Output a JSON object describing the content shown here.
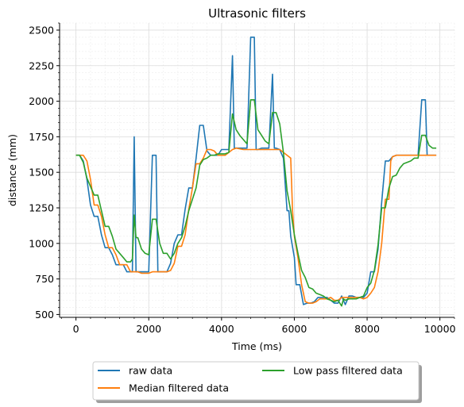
{
  "chart_data": {
    "type": "line",
    "title": "Ultrasonic filters",
    "xlabel": "Time (ms)",
    "ylabel": "distance (mm)",
    "xlim": [
      -450,
      10400
    ],
    "ylim": [
      480,
      2550
    ],
    "xticks": [
      0,
      2000,
      4000,
      6000,
      8000,
      10000
    ],
    "yticks": [
      500,
      750,
      1000,
      1250,
      1500,
      1750,
      2000,
      2250,
      2500
    ],
    "grid": true,
    "legend_position": "bottom-center",
    "series": [
      {
        "name": "raw data",
        "color": "#1f77b4",
        "points": [
          [
            0,
            1620
          ],
          [
            100,
            1620
          ],
          [
            200,
            1580
          ],
          [
            300,
            1450
          ],
          [
            400,
            1270
          ],
          [
            500,
            1190
          ],
          [
            600,
            1190
          ],
          [
            700,
            1060
          ],
          [
            800,
            970
          ],
          [
            900,
            970
          ],
          [
            1000,
            920
          ],
          [
            1100,
            850
          ],
          [
            1200,
            850
          ],
          [
            1300,
            850
          ],
          [
            1400,
            800
          ],
          [
            1500,
            800
          ],
          [
            1550,
            800
          ],
          [
            1600,
            1750
          ],
          [
            1650,
            800
          ],
          [
            1700,
            800
          ],
          [
            1800,
            800
          ],
          [
            1900,
            800
          ],
          [
            2000,
            800
          ],
          [
            2100,
            1620
          ],
          [
            2200,
            1620
          ],
          [
            2250,
            800
          ],
          [
            2300,
            800
          ],
          [
            2400,
            800
          ],
          [
            2500,
            800
          ],
          [
            2600,
            860
          ],
          [
            2700,
            1000
          ],
          [
            2800,
            1060
          ],
          [
            2900,
            1060
          ],
          [
            3000,
            1240
          ],
          [
            3100,
            1390
          ],
          [
            3200,
            1390
          ],
          [
            3300,
            1600
          ],
          [
            3400,
            1830
          ],
          [
            3500,
            1830
          ],
          [
            3600,
            1650
          ],
          [
            3700,
            1620
          ],
          [
            3800,
            1620
          ],
          [
            3900,
            1620
          ],
          [
            4000,
            1660
          ],
          [
            4100,
            1660
          ],
          [
            4200,
            1660
          ],
          [
            4300,
            2320
          ],
          [
            4350,
            1670
          ],
          [
            4400,
            1670
          ],
          [
            4500,
            1670
          ],
          [
            4600,
            1670
          ],
          [
            4700,
            1670
          ],
          [
            4800,
            2450
          ],
          [
            4900,
            2450
          ],
          [
            4950,
            1660
          ],
          [
            5000,
            1660
          ],
          [
            5100,
            1670
          ],
          [
            5200,
            1670
          ],
          [
            5300,
            1670
          ],
          [
            5400,
            2190
          ],
          [
            5450,
            1670
          ],
          [
            5500,
            1670
          ],
          [
            5600,
            1660
          ],
          [
            5700,
            1600
          ],
          [
            5800,
            1230
          ],
          [
            5850,
            1230
          ],
          [
            5900,
            1050
          ],
          [
            6000,
            900
          ],
          [
            6050,
            710
          ],
          [
            6150,
            710
          ],
          [
            6250,
            570
          ],
          [
            6350,
            580
          ],
          [
            6450,
            580
          ],
          [
            6550,
            590
          ],
          [
            6650,
            620
          ],
          [
            6800,
            620
          ],
          [
            6900,
            620
          ],
          [
            7000,
            600
          ],
          [
            7100,
            580
          ],
          [
            7200,
            580
          ],
          [
            7300,
            630
          ],
          [
            7400,
            570
          ],
          [
            7500,
            630
          ],
          [
            7600,
            630
          ],
          [
            7700,
            620
          ],
          [
            7800,
            620
          ],
          [
            7900,
            620
          ],
          [
            8000,
            650
          ],
          [
            8100,
            800
          ],
          [
            8200,
            800
          ],
          [
            8300,
            960
          ],
          [
            8400,
            1290
          ],
          [
            8500,
            1580
          ],
          [
            8600,
            1580
          ],
          [
            8700,
            1610
          ],
          [
            8800,
            1620
          ],
          [
            9000,
            1620
          ],
          [
            9200,
            1620
          ],
          [
            9400,
            1620
          ],
          [
            9500,
            2010
          ],
          [
            9600,
            2010
          ],
          [
            9650,
            1620
          ],
          [
            9700,
            1620
          ],
          [
            9800,
            1620
          ],
          [
            9900,
            1620
          ]
        ]
      },
      {
        "name": "Median filtered data",
        "color": "#ff7f0e",
        "points": [
          [
            0,
            1620
          ],
          [
            200,
            1620
          ],
          [
            300,
            1580
          ],
          [
            400,
            1450
          ],
          [
            500,
            1270
          ],
          [
            600,
            1270
          ],
          [
            700,
            1190
          ],
          [
            800,
            1060
          ],
          [
            900,
            970
          ],
          [
            1000,
            970
          ],
          [
            1100,
            920
          ],
          [
            1200,
            850
          ],
          [
            1300,
            850
          ],
          [
            1400,
            850
          ],
          [
            1500,
            800
          ],
          [
            1700,
            800
          ],
          [
            1800,
            790
          ],
          [
            2000,
            790
          ],
          [
            2100,
            800
          ],
          [
            2400,
            800
          ],
          [
            2500,
            800
          ],
          [
            2600,
            810
          ],
          [
            2700,
            860
          ],
          [
            2800,
            980
          ],
          [
            2900,
            980
          ],
          [
            3000,
            1060
          ],
          [
            3100,
            1240
          ],
          [
            3200,
            1390
          ],
          [
            3300,
            1560
          ],
          [
            3400,
            1560
          ],
          [
            3500,
            1600
          ],
          [
            3600,
            1660
          ],
          [
            3700,
            1660
          ],
          [
            3800,
            1650
          ],
          [
            3900,
            1620
          ],
          [
            4000,
            1620
          ],
          [
            4100,
            1620
          ],
          [
            4200,
            1640
          ],
          [
            4300,
            1660
          ],
          [
            4400,
            1670
          ],
          [
            4600,
            1660
          ],
          [
            4800,
            1660
          ],
          [
            5000,
            1660
          ],
          [
            5200,
            1660
          ],
          [
            5400,
            1660
          ],
          [
            5600,
            1660
          ],
          [
            5700,
            1640
          ],
          [
            5900,
            1600
          ],
          [
            5950,
            1230
          ],
          [
            6000,
            1050
          ],
          [
            6100,
            900
          ],
          [
            6200,
            710
          ],
          [
            6300,
            590
          ],
          [
            6400,
            580
          ],
          [
            6500,
            580
          ],
          [
            6600,
            590
          ],
          [
            6700,
            610
          ],
          [
            6900,
            610
          ],
          [
            7000,
            620
          ],
          [
            7100,
            600
          ],
          [
            7200,
            600
          ],
          [
            7300,
            620
          ],
          [
            7400,
            620
          ],
          [
            7500,
            620
          ],
          [
            7700,
            620
          ],
          [
            7800,
            620
          ],
          [
            7900,
            610
          ],
          [
            8000,
            620
          ],
          [
            8100,
            650
          ],
          [
            8200,
            690
          ],
          [
            8300,
            800
          ],
          [
            8400,
            1000
          ],
          [
            8500,
            1310
          ],
          [
            8600,
            1310
          ],
          [
            8650,
            1580
          ],
          [
            8700,
            1610
          ],
          [
            8800,
            1620
          ],
          [
            9000,
            1620
          ],
          [
            9400,
            1620
          ],
          [
            9600,
            1620
          ],
          [
            9800,
            1620
          ],
          [
            9900,
            1620
          ]
        ]
      },
      {
        "name": "Low pass filtered data",
        "color": "#2ca02c",
        "points": [
          [
            0,
            1620
          ],
          [
            100,
            1620
          ],
          [
            200,
            1570
          ],
          [
            300,
            1460
          ],
          [
            400,
            1400
          ],
          [
            500,
            1340
          ],
          [
            600,
            1340
          ],
          [
            700,
            1230
          ],
          [
            800,
            1120
          ],
          [
            900,
            1120
          ],
          [
            1000,
            1050
          ],
          [
            1100,
            960
          ],
          [
            1200,
            930
          ],
          [
            1300,
            900
          ],
          [
            1400,
            870
          ],
          [
            1500,
            870
          ],
          [
            1550,
            890
          ],
          [
            1600,
            1200
          ],
          [
            1650,
            1040
          ],
          [
            1700,
            1040
          ],
          [
            1800,
            960
          ],
          [
            1900,
            930
          ],
          [
            2000,
            920
          ],
          [
            2100,
            1170
          ],
          [
            2200,
            1170
          ],
          [
            2300,
            1000
          ],
          [
            2400,
            930
          ],
          [
            2500,
            930
          ],
          [
            2600,
            890
          ],
          [
            2700,
            930
          ],
          [
            2800,
            1000
          ],
          [
            2900,
            1040
          ],
          [
            3000,
            1120
          ],
          [
            3100,
            1230
          ],
          [
            3200,
            1310
          ],
          [
            3300,
            1390
          ],
          [
            3400,
            1550
          ],
          [
            3500,
            1590
          ],
          [
            3600,
            1600
          ],
          [
            3700,
            1620
          ],
          [
            3800,
            1620
          ],
          [
            3900,
            1630
          ],
          [
            4000,
            1630
          ],
          [
            4100,
            1630
          ],
          [
            4200,
            1640
          ],
          [
            4300,
            1910
          ],
          [
            4400,
            1800
          ],
          [
            4500,
            1760
          ],
          [
            4600,
            1730
          ],
          [
            4700,
            1700
          ],
          [
            4800,
            2010
          ],
          [
            4900,
            2010
          ],
          [
            5000,
            1800
          ],
          [
            5100,
            1760
          ],
          [
            5200,
            1720
          ],
          [
            5300,
            1700
          ],
          [
            5400,
            1920
          ],
          [
            5500,
            1920
          ],
          [
            5600,
            1840
          ],
          [
            5700,
            1640
          ],
          [
            5800,
            1370
          ],
          [
            5900,
            1230
          ],
          [
            6000,
            1060
          ],
          [
            6100,
            930
          ],
          [
            6200,
            810
          ],
          [
            6300,
            760
          ],
          [
            6400,
            690
          ],
          [
            6500,
            680
          ],
          [
            6600,
            650
          ],
          [
            6700,
            640
          ],
          [
            6800,
            630
          ],
          [
            6900,
            610
          ],
          [
            7000,
            600
          ],
          [
            7100,
            590
          ],
          [
            7200,
            600
          ],
          [
            7300,
            560
          ],
          [
            7350,
            610
          ],
          [
            7400,
            600
          ],
          [
            7500,
            610
          ],
          [
            7600,
            610
          ],
          [
            7700,
            610
          ],
          [
            7800,
            620
          ],
          [
            7900,
            630
          ],
          [
            8000,
            690
          ],
          [
            8100,
            720
          ],
          [
            8200,
            810
          ],
          [
            8300,
            990
          ],
          [
            8400,
            1250
          ],
          [
            8500,
            1250
          ],
          [
            8600,
            1390
          ],
          [
            8700,
            1470
          ],
          [
            8800,
            1480
          ],
          [
            8900,
            1530
          ],
          [
            9000,
            1560
          ],
          [
            9100,
            1570
          ],
          [
            9200,
            1580
          ],
          [
            9300,
            1600
          ],
          [
            9400,
            1600
          ],
          [
            9500,
            1760
          ],
          [
            9600,
            1760
          ],
          [
            9700,
            1690
          ],
          [
            9800,
            1670
          ],
          [
            9900,
            1670
          ]
        ]
      }
    ]
  }
}
